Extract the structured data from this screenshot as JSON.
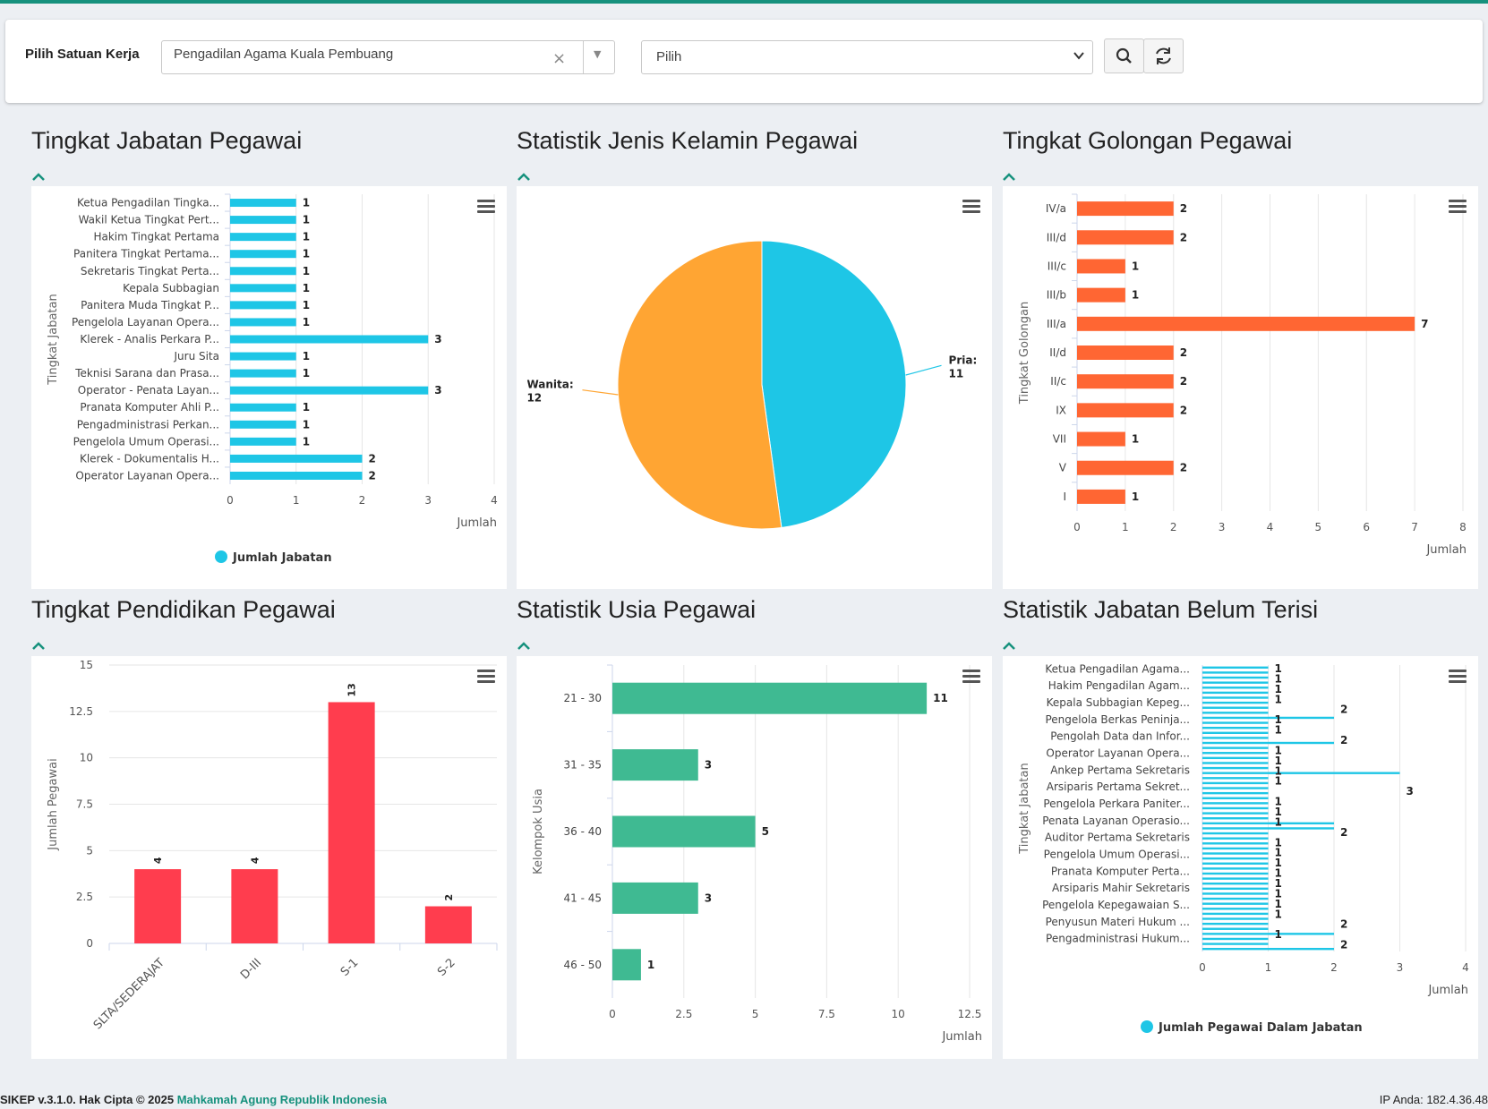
{
  "header": {
    "filter_label": "Pilih Satuan Kerja",
    "satker_value": "Pengadilan Agama Kuala Pembuang",
    "satker_clear": "×",
    "second_select_value": "Pilih"
  },
  "panels": {
    "jabatan_title": "Tingkat Jabatan Pegawai",
    "gender_title": "Statistik Jenis Kelamin Pegawai",
    "golongan_title": "Tingkat Golongan Pegawai",
    "pendidikan_title": "Tingkat Pendidikan Pegawai",
    "usia_title": "Statistik Usia Pegawai",
    "belum_title": "Statistik Jabatan Belum Terisi"
  },
  "footer": {
    "left_prefix": "SIKEP v.3.1.0. Hak Cipta © 2025",
    "left_brand": "Mahkamah Agung Republik Indonesia",
    "right": "IP Anda: 182.4.36.48"
  },
  "colors": {
    "accent": "#16917d",
    "cyan": "#1ec6e6",
    "orange": "#ff6633",
    "pie_orange": "#ffa533",
    "red": "#ff3d4e",
    "green": "#3fba92"
  },
  "chart_data": [
    {
      "type": "bar",
      "orientation": "horizontal",
      "categories": [
        "Ketua Pengadilan Tingka...",
        "Wakil Ketua Tingkat Pert...",
        "Hakim Tingkat Pertama",
        "Panitera Tingkat Pertama...",
        "Sekretaris Tingkat Perta...",
        "Kepala Subbagian",
        "Panitera Muda Tingkat P...",
        "Pengelola Layanan Opera...",
        "Klerek - Analis Perkara P...",
        "Juru Sita",
        "Teknisi Sarana dan Prasa...",
        "Operator - Penata Layan...",
        "Pranata Komputer Ahli P...",
        "Pengadministrasi Perkan...",
        "Pengelola Umum Operasi...",
        "Klerek - Dokumentalis H...",
        "Operator Layanan Opera..."
      ],
      "values": [
        1,
        1,
        1,
        1,
        1,
        1,
        1,
        1,
        3,
        1,
        1,
        3,
        1,
        1,
        1,
        2,
        2
      ],
      "series_name": "Jumlah Jabatan",
      "xlabel": "Jumlah",
      "ylabel": "Tingkat Jabatan",
      "ticks": [
        "0",
        "1",
        "2",
        "3",
        "4"
      ],
      "xlim": [
        0,
        4
      ]
    },
    {
      "type": "pie",
      "slices": [
        {
          "label": "Pria",
          "value": 11,
          "color": "#1ec6e6"
        },
        {
          "label": "Wanita",
          "value": 12,
          "color": "#ffa533"
        }
      ]
    },
    {
      "type": "bar",
      "orientation": "horizontal",
      "categories": [
        "IV/a",
        "III/d",
        "III/c",
        "III/b",
        "III/a",
        "II/d",
        "II/c",
        "IX",
        "VII",
        "V",
        "I"
      ],
      "values": [
        2,
        2,
        1,
        1,
        7,
        2,
        2,
        2,
        1,
        2,
        1
      ],
      "xlabel": "Jumlah",
      "ylabel": "Tingkat Golongan",
      "ticks": [
        "0",
        "1",
        "2",
        "3",
        "4",
        "5",
        "6",
        "7",
        "8"
      ],
      "xlim": [
        0,
        8
      ]
    },
    {
      "type": "bar",
      "orientation": "vertical",
      "categories": [
        "SLTA/SEDERAJAT",
        "D-III",
        "S-1",
        "S-2"
      ],
      "values": [
        4,
        4,
        13,
        2
      ],
      "ylabel": "Jumlah Pegawai",
      "ticks": [
        "0",
        "2.5",
        "5",
        "7.5",
        "10",
        "12.5",
        "15"
      ],
      "ylim": [
        0,
        15
      ]
    },
    {
      "type": "bar",
      "orientation": "horizontal",
      "categories": [
        "21 - 30",
        "31 - 35",
        "36 - 40",
        "41 - 45",
        "46 - 50"
      ],
      "values": [
        11,
        3,
        5,
        3,
        1
      ],
      "xlabel": "Jumlah",
      "ylabel": "Kelompok Usia",
      "ticks": [
        "0",
        "2.5",
        "5",
        "7.5",
        "10",
        "12.5"
      ],
      "xlim": [
        0,
        12.5
      ]
    },
    {
      "type": "bar",
      "orientation": "horizontal",
      "categories": [
        "Ketua Pengadilan Agama...",
        "Hakim Pengadilan Agam...",
        "Kepala Subbagian Kepeg...",
        "Pengelola Berkas Peninja...",
        "Pengolah Data dan Infor...",
        "Operator Layanan Opera...",
        "Ankep Pertama Sekretaris",
        "Arsiparis Pertama Sekret...",
        "Pengelola Perkara Paniter...",
        "Penata Layanan Operasio...",
        "Auditor Pertama Sekretaris",
        "Pengelola Umum Operasi...",
        "Pranata Komputer Perta...",
        "Arsiparis Mahir Sekretaris",
        "Pengelola Kepegawaian S...",
        "Penyusun Materi Hukum ...",
        "Pengadministrasi Hukum..."
      ],
      "bars": [
        1,
        1,
        1,
        1,
        1,
        1,
        1,
        1,
        1,
        1,
        2,
        1,
        1,
        1,
        1,
        2,
        1,
        1,
        1,
        1,
        1,
        3,
        1,
        1,
        1,
        1,
        1,
        1,
        1,
        1,
        1,
        2,
        2,
        1,
        1,
        1,
        1,
        1,
        1,
        1,
        1,
        1,
        1,
        1,
        1,
        1,
        1,
        1,
        1,
        1,
        1,
        1,
        1,
        2,
        1,
        1,
        2
      ],
      "visible_labels": [
        "1",
        "1",
        "1",
        "1",
        "2",
        "1",
        "1",
        "2",
        "1",
        "1",
        "1",
        "1",
        "3",
        "1",
        "1",
        "1",
        "2",
        "1",
        "1",
        "1",
        "1",
        "1",
        "1",
        "1",
        "1",
        "2",
        "1",
        "2"
      ],
      "series_name": "Jumlah Pegawai Dalam Jabatan",
      "xlabel": "Jumlah",
      "ylabel": "Tingkat Jabatan",
      "ticks": [
        "0",
        "1",
        "2",
        "3",
        "4"
      ],
      "xlim": [
        0,
        4
      ]
    }
  ]
}
